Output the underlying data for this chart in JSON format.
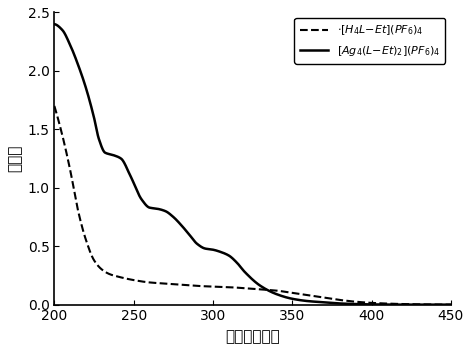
{
  "xlim": [
    200,
    450
  ],
  "ylim": [
    0,
    2.5
  ],
  "xticks": [
    200,
    250,
    300,
    350,
    400,
    450
  ],
  "yticks": [
    0.0,
    0.5,
    1.0,
    1.5,
    2.0,
    2.5
  ],
  "xlabel": "波长（纳米）",
  "ylabel": "吸光度",
  "line_color": "#000000",
  "background_color": "#ffffff",
  "solid_points_x": [
    200,
    205,
    210,
    215,
    220,
    225,
    228,
    232,
    237,
    242,
    248,
    255,
    260,
    265,
    270,
    275,
    280,
    285,
    290,
    295,
    300,
    305,
    310,
    315,
    320,
    330,
    340,
    350,
    360,
    370,
    380,
    390,
    400,
    420,
    450
  ],
  "solid_points_y": [
    2.4,
    2.35,
    2.22,
    2.05,
    1.85,
    1.6,
    1.42,
    1.3,
    1.28,
    1.25,
    1.1,
    0.9,
    0.83,
    0.82,
    0.8,
    0.75,
    0.68,
    0.6,
    0.52,
    0.48,
    0.47,
    0.45,
    0.42,
    0.36,
    0.28,
    0.16,
    0.09,
    0.05,
    0.03,
    0.02,
    0.01,
    0.005,
    0.002,
    0.0,
    0.0
  ],
  "dashed_points_x": [
    200,
    205,
    210,
    215,
    220,
    225,
    230,
    235,
    240,
    250,
    260,
    270,
    280,
    290,
    300,
    310,
    320,
    330,
    340,
    350,
    360,
    370,
    380,
    390,
    400,
    420,
    450
  ],
  "dashed_points_y": [
    1.7,
    1.45,
    1.15,
    0.8,
    0.55,
    0.38,
    0.3,
    0.26,
    0.24,
    0.21,
    0.19,
    0.18,
    0.17,
    0.16,
    0.155,
    0.15,
    0.14,
    0.13,
    0.12,
    0.1,
    0.08,
    0.06,
    0.04,
    0.025,
    0.015,
    0.005,
    0.0
  ]
}
